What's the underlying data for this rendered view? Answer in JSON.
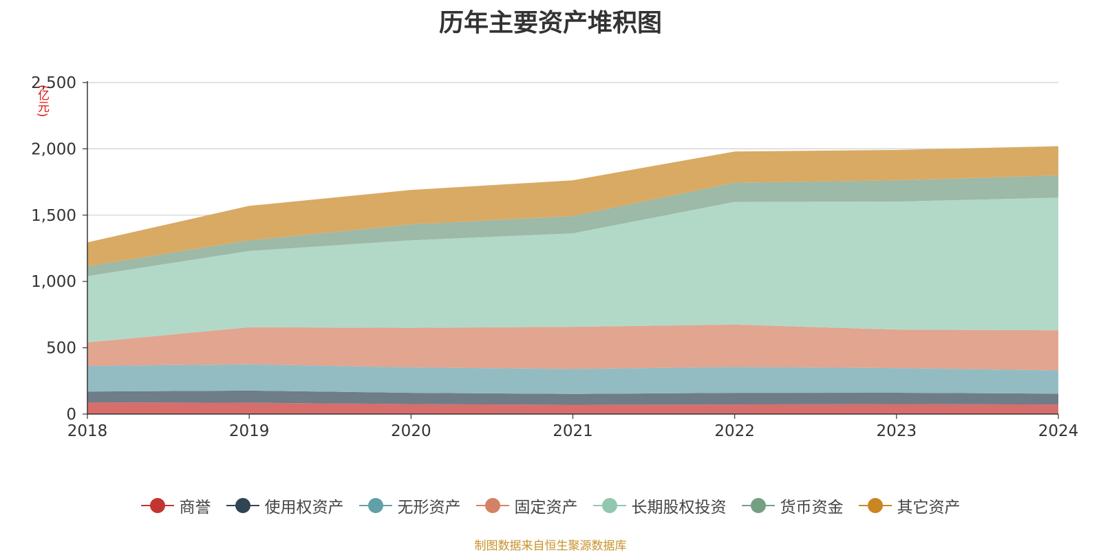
{
  "chart_data": {
    "type": "area",
    "stacked": true,
    "title": "历年主要资产堆积图",
    "unit": "(亿元)",
    "source": "制图数据来自恒生聚源数据库",
    "x": [
      "2018",
      "2019",
      "2020",
      "2021",
      "2022",
      "2023",
      "2024"
    ],
    "ylim": [
      0,
      2500
    ],
    "yticks": [
      0,
      500,
      1000,
      1500,
      2000,
      2500
    ],
    "ytick_labels": [
      "0",
      "500",
      "1,000",
      "1,500",
      "2,000",
      "2,500"
    ],
    "grid": true,
    "legend_position": "bottom",
    "series": [
      {
        "name": "商誉",
        "color": "#c23531",
        "fill": "#d76e6c",
        "values": [
          88,
          85,
          75,
          70,
          72,
          75,
          72
        ]
      },
      {
        "name": "使用权资产",
        "color": "#2f4554",
        "fill": "#6e7d88",
        "values": [
          82,
          92,
          85,
          82,
          88,
          86,
          82
        ]
      },
      {
        "name": "无形资产",
        "color": "#61a0a8",
        "fill": "#92bcc2",
        "values": [
          193,
          198,
          192,
          188,
          195,
          186,
          175
        ]
      },
      {
        "name": "固定资产",
        "color": "#d48265",
        "fill": "#e1a590",
        "values": [
          177,
          280,
          298,
          318,
          320,
          290,
          303
        ]
      },
      {
        "name": "长期股权投资",
        "color": "#91c7ae",
        "fill": "#b2d9c7",
        "values": [
          500,
          575,
          660,
          705,
          925,
          965,
          1000
        ]
      },
      {
        "name": "货币资金",
        "color": "#749f83",
        "fill": "#9db9a7",
        "values": [
          75,
          80,
          120,
          130,
          145,
          160,
          168
        ]
      },
      {
        "name": "其它资产",
        "color": "#ca8622",
        "fill": "#d9aa64",
        "values": [
          180,
          260,
          260,
          270,
          235,
          230,
          220
        ]
      }
    ]
  }
}
